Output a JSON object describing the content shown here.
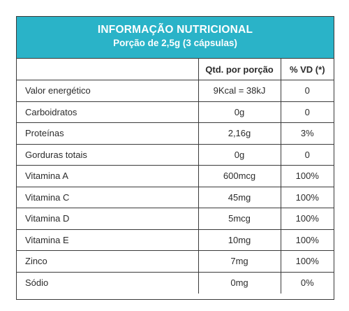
{
  "header": {
    "title": "INFORMAÇÃO NUTRICIONAL",
    "subtitle": "Porção de 2,5g (3 cápsulas)"
  },
  "columns": {
    "nutrient": "",
    "qty": "Qtd. por porção",
    "vd": "% VD (*)"
  },
  "rows": [
    {
      "nutrient": "Valor energético",
      "qty": "9Kcal = 38kJ",
      "vd": "0"
    },
    {
      "nutrient": "Carboidratos",
      "qty": "0g",
      "vd": "0"
    },
    {
      "nutrient": "Proteínas",
      "qty": "2,16g",
      "vd": "3%"
    },
    {
      "nutrient": "Gorduras totais",
      "qty": "0g",
      "vd": "0"
    },
    {
      "nutrient": "Vitamina A",
      "qty": "600mcg",
      "vd": "100%"
    },
    {
      "nutrient": "Vitamina C",
      "qty": "45mg",
      "vd": "100%"
    },
    {
      "nutrient": "Vitamina D",
      "qty": "5mcg",
      "vd": "100%"
    },
    {
      "nutrient": "Vitamina E",
      "qty": "10mg",
      "vd": "100%"
    },
    {
      "nutrient": "Zinco",
      "qty": "7mg",
      "vd": "100%"
    },
    {
      "nutrient": "Sódio",
      "qty": "0mg",
      "vd": "0%"
    }
  ],
  "colors": {
    "header_background": "#2ab3c8",
    "header_text": "#ffffff",
    "border": "#3a3a3a",
    "text": "#2b2b2b"
  }
}
